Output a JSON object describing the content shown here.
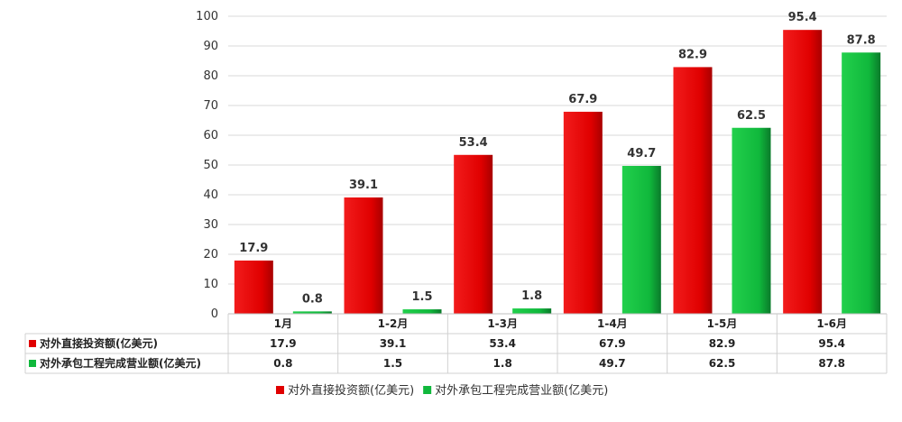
{
  "chart_data": {
    "type": "bar",
    "categories": [
      "1月",
      "1-2月",
      "1-3月",
      "1-4月",
      "1-5月",
      "1-6月"
    ],
    "series": [
      {
        "name": "对外直接投资额(亿美元)",
        "values": [
          17.9,
          39.1,
          53.4,
          67.9,
          82.9,
          95.4
        ],
        "color": "#e00000"
      },
      {
        "name": "对外承包工程完成营业额(亿美元)",
        "values": [
          0.8,
          1.5,
          1.8,
          49.7,
          62.5,
          87.8
        ],
        "color": "#10b83c"
      }
    ],
    "ylim": [
      0,
      100
    ],
    "yticks": [
      0,
      10,
      20,
      30,
      40,
      50,
      60,
      70,
      80,
      90,
      100
    ],
    "grid": true,
    "data_table": true,
    "legend_position": "bottom"
  }
}
